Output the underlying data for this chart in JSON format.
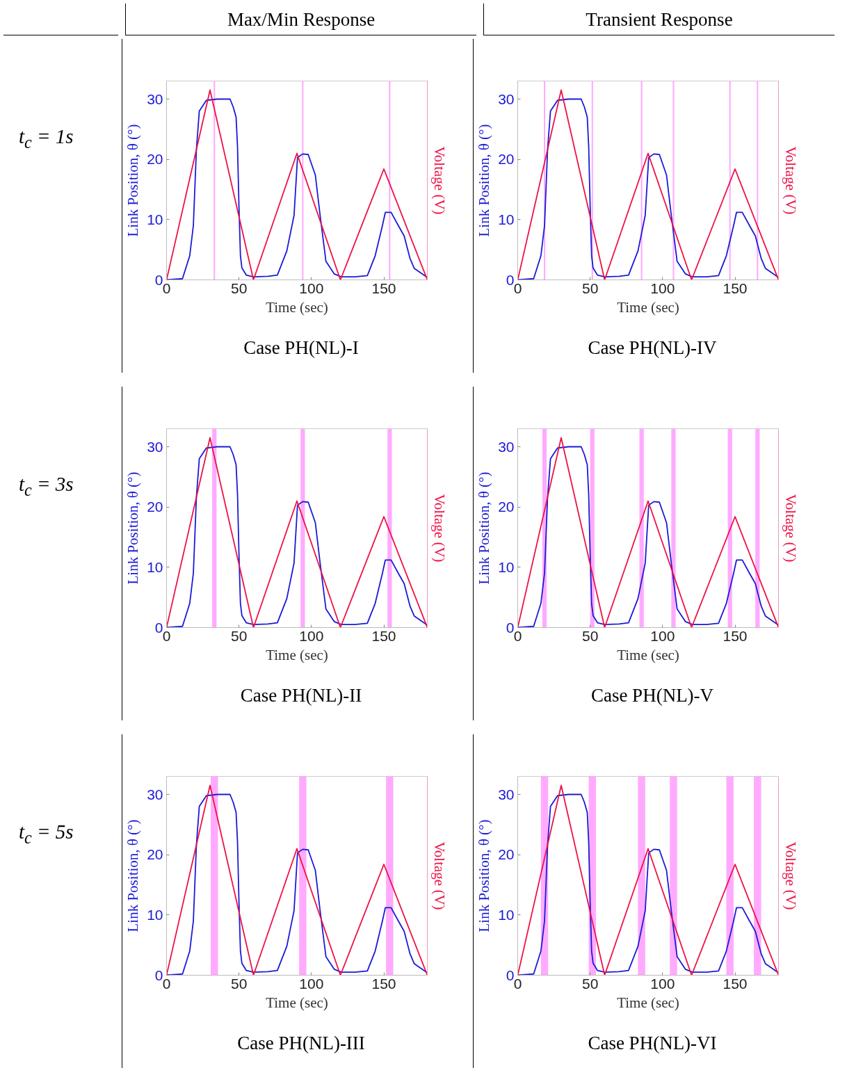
{
  "chart_data": [
    {
      "type": "line",
      "title": "Case PH(NL)-I",
      "xlabel": "Time (sec)",
      "ylabel": "Link Position, θ (°)",
      "y2label": "Voltage (V)",
      "annotations": [
        "Max/Min Response",
        "t$_{c}$ = 1s"
      ],
      "series": [
        {
          "color": "#1a1ad8",
          "x": [
            0,
            11,
            16,
            18.5,
            20.6,
            22.6,
            27.5,
            35,
            43.8,
            46,
            48,
            49,
            50,
            51,
            52,
            55,
            60,
            70,
            76.5,
            83,
            88,
            90.4,
            94,
            97.8,
            102.7,
            106,
            110,
            115.7,
            120.6,
            130,
            138.6,
            144,
            149,
            151,
            155,
            160,
            164,
            168,
            171,
            180
          ],
          "values": [
            0,
            0.2,
            4,
            9,
            21.6,
            28,
            29.8,
            30,
            30,
            28.7,
            27,
            22,
            12,
            4,
            2,
            0.8,
            0.5,
            0.6,
            0.8,
            4.8,
            10.7,
            20.3,
            20.9,
            20.8,
            17.4,
            10.7,
            3.1,
            1,
            0.5,
            0.5,
            0.7,
            4,
            9,
            11.2,
            11.2,
            9,
            7.3,
            3.6,
            1.9,
            0.4
          ]
        },
        {
          "color": "#ee1144",
          "x": [
            0,
            30,
            60,
            90,
            120,
            150,
            180
          ],
          "values": [
            0,
            31.5,
            0,
            21,
            0,
            18.4,
            0
          ]
        }
      ],
      "xlim": [
        0,
        180
      ],
      "ylim": [
        0,
        33
      ],
      "xticks": [
        0,
        50,
        100,
        150
      ],
      "yticks": [
        0,
        10,
        20,
        30
      ],
      "bands": [
        {
          "axis": "x",
          "from": 32.5,
          "to": 33.5,
          "color": "#ffaaff"
        },
        {
          "axis": "x",
          "from": 93.5,
          "to": 94.5,
          "color": "#ffaaff"
        },
        {
          "axis": "x",
          "from": 153.5,
          "to": 154.5,
          "color": "#ffaaff"
        }
      ]
    },
    {
      "type": "line",
      "title": "Case PH(NL)-IV",
      "xlabel": "Time (sec)",
      "ylabel": "Link Position, θ (°)",
      "y2label": "Voltage (V)",
      "annotations": [
        "Transient Response"
      ],
      "series": [
        {
          "color": "#1a1ad8",
          "x": [
            0,
            11,
            16,
            18.5,
            20.6,
            22.6,
            27.5,
            35,
            43.8,
            46,
            48,
            49,
            50,
            51,
            52,
            55,
            60,
            70,
            76.5,
            83,
            88,
            90.4,
            94,
            97.8,
            102.7,
            106,
            110,
            115.7,
            120.6,
            130,
            138.6,
            144,
            149,
            151,
            155,
            160,
            164,
            168,
            171,
            180
          ],
          "values": [
            0,
            0.2,
            4,
            9,
            21.6,
            28,
            29.8,
            30,
            30,
            28.7,
            27,
            22,
            12,
            4,
            2,
            0.8,
            0.5,
            0.6,
            0.8,
            4.8,
            10.7,
            20.3,
            20.9,
            20.8,
            17.4,
            10.7,
            3.1,
            1,
            0.5,
            0.5,
            0.7,
            4,
            9,
            11.2,
            11.2,
            9,
            7.3,
            3.6,
            1.9,
            0.4
          ]
        },
        {
          "color": "#ee1144",
          "x": [
            0,
            30,
            60,
            90,
            120,
            150,
            180
          ],
          "values": [
            0,
            31.5,
            0,
            21,
            0,
            18.4,
            0
          ]
        }
      ],
      "xlim": [
        0,
        180
      ],
      "ylim": [
        0,
        33
      ],
      "xticks": [
        0,
        50,
        100,
        150
      ],
      "yticks": [
        0,
        10,
        20,
        30
      ],
      "bands": [
        {
          "axis": "x",
          "from": 18,
          "to": 19,
          "color": "#ffaaff"
        },
        {
          "axis": "x",
          "from": 51,
          "to": 52,
          "color": "#ffaaff"
        },
        {
          "axis": "x",
          "from": 85,
          "to": 86,
          "color": "#ffaaff"
        },
        {
          "axis": "x",
          "from": 107,
          "to": 108,
          "color": "#ffaaff"
        },
        {
          "axis": "x",
          "from": 146,
          "to": 147,
          "color": "#ffaaff"
        },
        {
          "axis": "x",
          "from": 165,
          "to": 166,
          "color": "#ffaaff"
        }
      ]
    },
    {
      "type": "line",
      "title": "Case PH(NL)-II",
      "xlabel": "Time (sec)",
      "ylabel": "Link Position, θ (°)",
      "y2label": "Voltage (V)",
      "annotations": [
        "t$_{c}$ = 3s"
      ],
      "series": [
        {
          "color": "#1a1ad8",
          "x": [
            0,
            11,
            16,
            18.5,
            20.6,
            22.6,
            27.5,
            35,
            43.8,
            46,
            48,
            49,
            50,
            51,
            52,
            55,
            60,
            70,
            76.5,
            83,
            88,
            90.4,
            94,
            97.8,
            102.7,
            106,
            110,
            115.7,
            120.6,
            130,
            138.6,
            144,
            149,
            151,
            155,
            160,
            164,
            168,
            171,
            180
          ],
          "values": [
            0,
            0.2,
            4,
            9,
            21.6,
            28,
            29.8,
            30,
            30,
            28.7,
            27,
            22,
            12,
            4,
            2,
            0.8,
            0.5,
            0.6,
            0.8,
            4.8,
            10.7,
            20.3,
            20.9,
            20.8,
            17.4,
            10.7,
            3.1,
            1,
            0.5,
            0.5,
            0.7,
            4,
            9,
            11.2,
            11.2,
            9,
            7.3,
            3.6,
            1.9,
            0.4
          ]
        },
        {
          "color": "#ee1144",
          "x": [
            0,
            30,
            60,
            90,
            120,
            150,
            180
          ],
          "values": [
            0,
            31.5,
            0,
            21,
            0,
            18.4,
            0
          ]
        }
      ],
      "xlim": [
        0,
        180
      ],
      "ylim": [
        0,
        33
      ],
      "xticks": [
        0,
        50,
        100,
        150
      ],
      "yticks": [
        0,
        10,
        20,
        30
      ],
      "bands": [
        {
          "axis": "x",
          "from": 31.5,
          "to": 34.5,
          "color": "#ffaaff"
        },
        {
          "axis": "x",
          "from": 92.5,
          "to": 95.5,
          "color": "#ffaaff"
        },
        {
          "axis": "x",
          "from": 152.5,
          "to": 155.5,
          "color": "#ffaaff"
        }
      ]
    },
    {
      "type": "line",
      "title": "Case PH(NL)-V",
      "xlabel": "Time (sec)",
      "ylabel": "Link Position, θ (°)",
      "y2label": "Voltage (V)",
      "series": [
        {
          "color": "#1a1ad8",
          "x": [
            0,
            11,
            16,
            18.5,
            20.6,
            22.6,
            27.5,
            35,
            43.8,
            46,
            48,
            49,
            50,
            51,
            52,
            55,
            60,
            70,
            76.5,
            83,
            88,
            90.4,
            94,
            97.8,
            102.7,
            106,
            110,
            115.7,
            120.6,
            130,
            138.6,
            144,
            149,
            151,
            155,
            160,
            164,
            168,
            171,
            180
          ],
          "values": [
            0,
            0.2,
            4,
            9,
            21.6,
            28,
            29.8,
            30,
            30,
            28.7,
            27,
            22,
            12,
            4,
            2,
            0.8,
            0.5,
            0.6,
            0.8,
            4.8,
            10.7,
            20.3,
            20.9,
            20.8,
            17.4,
            10.7,
            3.1,
            1,
            0.5,
            0.5,
            0.7,
            4,
            9,
            11.2,
            11.2,
            9,
            7.3,
            3.6,
            1.9,
            0.4
          ]
        },
        {
          "color": "#ee1144",
          "x": [
            0,
            30,
            60,
            90,
            120,
            150,
            180
          ],
          "values": [
            0,
            31.5,
            0,
            21,
            0,
            18.4,
            0
          ]
        }
      ],
      "xlim": [
        0,
        180
      ],
      "ylim": [
        0,
        33
      ],
      "xticks": [
        0,
        50,
        100,
        150
      ],
      "yticks": [
        0,
        10,
        20,
        30
      ],
      "bands": [
        {
          "axis": "x",
          "from": 17,
          "to": 20,
          "color": "#ffaaff"
        },
        {
          "axis": "x",
          "from": 50,
          "to": 53,
          "color": "#ffaaff"
        },
        {
          "axis": "x",
          "from": 84,
          "to": 87,
          "color": "#ffaaff"
        },
        {
          "axis": "x",
          "from": 106,
          "to": 109,
          "color": "#ffaaff"
        },
        {
          "axis": "x",
          "from": 145,
          "to": 148,
          "color": "#ffaaff"
        },
        {
          "axis": "x",
          "from": 164,
          "to": 167,
          "color": "#ffaaff"
        }
      ]
    },
    {
      "type": "line",
      "title": "Case PH(NL)-III",
      "xlabel": "Time (sec)",
      "ylabel": "Link Position, θ (°)",
      "y2label": "Voltage (V)",
      "annotations": [
        "t$_{c}$ = 5s"
      ],
      "series": [
        {
          "color": "#1a1ad8",
          "x": [
            0,
            11,
            16,
            18.5,
            20.6,
            22.6,
            27.5,
            35,
            43.8,
            46,
            48,
            49,
            50,
            51,
            52,
            55,
            60,
            70,
            76.5,
            83,
            88,
            90.4,
            94,
            97.8,
            102.7,
            106,
            110,
            115.7,
            120.6,
            130,
            138.6,
            144,
            149,
            151,
            155,
            160,
            164,
            168,
            171,
            180
          ],
          "values": [
            0,
            0.2,
            4,
            9,
            21.6,
            28,
            29.8,
            30,
            30,
            28.7,
            27,
            22,
            12,
            4,
            2,
            0.8,
            0.5,
            0.6,
            0.8,
            4.8,
            10.7,
            20.3,
            20.9,
            20.8,
            17.4,
            10.7,
            3.1,
            1,
            0.5,
            0.5,
            0.7,
            4,
            9,
            11.2,
            11.2,
            9,
            7.3,
            3.6,
            1.9,
            0.4
          ]
        },
        {
          "color": "#ee1144",
          "x": [
            0,
            30,
            60,
            90,
            120,
            150,
            180
          ],
          "values": [
            0,
            31.5,
            0,
            21,
            0,
            18.4,
            0
          ]
        }
      ],
      "xlim": [
        0,
        180
      ],
      "ylim": [
        0,
        33
      ],
      "xticks": [
        0,
        50,
        100,
        150
      ],
      "yticks": [
        0,
        10,
        20,
        30
      ],
      "bands": [
        {
          "axis": "x",
          "from": 30.5,
          "to": 35.5,
          "color": "#ffaaff"
        },
        {
          "axis": "x",
          "from": 91.5,
          "to": 96.5,
          "color": "#ffaaff"
        },
        {
          "axis": "x",
          "from": 151.5,
          "to": 156.5,
          "color": "#ffaaff"
        }
      ]
    },
    {
      "type": "line",
      "title": "Case PH(NL)-VI",
      "xlabel": "Time (sec)",
      "ylabel": "Link Position, θ (°)",
      "y2label": "Voltage (V)",
      "series": [
        {
          "color": "#1a1ad8",
          "x": [
            0,
            11,
            16,
            18.5,
            20.6,
            22.6,
            27.5,
            35,
            43.8,
            46,
            48,
            49,
            50,
            51,
            52,
            55,
            60,
            70,
            76.5,
            83,
            88,
            90.4,
            94,
            97.8,
            102.7,
            106,
            110,
            115.7,
            120.6,
            130,
            138.6,
            144,
            149,
            151,
            155,
            160,
            164,
            168,
            171,
            180
          ],
          "values": [
            0,
            0.2,
            4,
            9,
            21.6,
            28,
            29.8,
            30,
            30,
            28.7,
            27,
            22,
            12,
            4,
            2,
            0.8,
            0.5,
            0.6,
            0.8,
            4.8,
            10.7,
            20.3,
            20.9,
            20.8,
            17.4,
            10.7,
            3.1,
            1,
            0.5,
            0.5,
            0.7,
            4,
            9,
            11.2,
            11.2,
            9,
            7.3,
            3.6,
            1.9,
            0.4
          ]
        },
        {
          "color": "#ee1144",
          "x": [
            0,
            30,
            60,
            90,
            120,
            150,
            180
          ],
          "values": [
            0,
            31.5,
            0,
            21,
            0,
            18.4,
            0
          ]
        }
      ],
      "xlim": [
        0,
        180
      ],
      "ylim": [
        0,
        33
      ],
      "xticks": [
        0,
        50,
        100,
        150
      ],
      "yticks": [
        0,
        10,
        20,
        30
      ],
      "bands": [
        {
          "axis": "x",
          "from": 16,
          "to": 21,
          "color": "#ffaaff"
        },
        {
          "axis": "x",
          "from": 49,
          "to": 54,
          "color": "#ffaaff"
        },
        {
          "axis": "x",
          "from": 83,
          "to": 88,
          "color": "#ffaaff"
        },
        {
          "axis": "x",
          "from": 105,
          "to": 110,
          "color": "#ffaaff"
        },
        {
          "axis": "x",
          "from": 144,
          "to": 149,
          "color": "#ffaaff"
        },
        {
          "axis": "x",
          "from": 163,
          "to": 168,
          "color": "#ffaaff"
        }
      ]
    }
  ]
}
